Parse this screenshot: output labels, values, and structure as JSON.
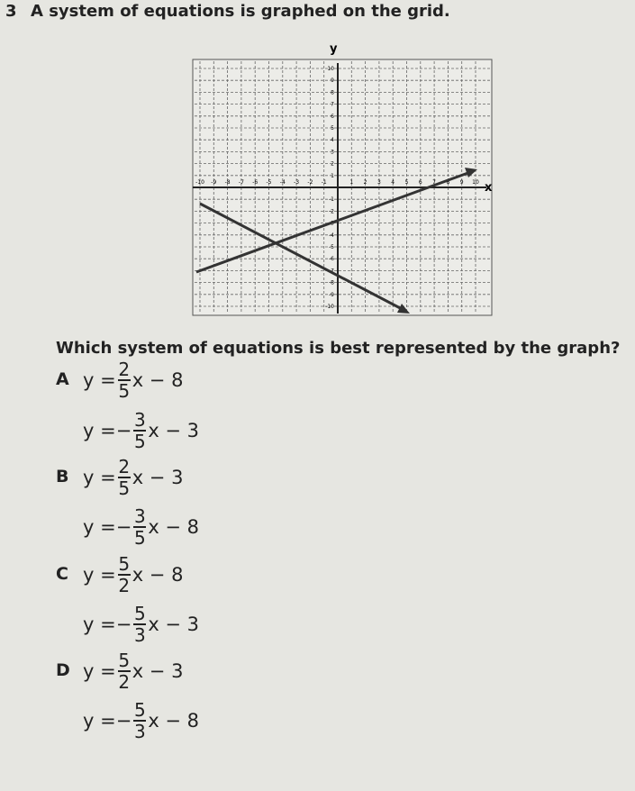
{
  "question": {
    "number": "3",
    "text": "A system of equations is graphed on the grid.",
    "prompt": "Which system of equations is best represented by the graph?"
  },
  "graph": {
    "x_label": "x",
    "y_label": "y",
    "xticks": [
      -10,
      -9,
      -8,
      -7,
      -6,
      -5,
      -4,
      -3,
      -2,
      -1,
      1,
      2,
      3,
      4,
      5,
      6,
      7,
      8,
      9,
      10
    ],
    "yticks": [
      10,
      9,
      8,
      7,
      6,
      5,
      4,
      3,
      2,
      1,
      -1,
      -2,
      -3,
      -4,
      -5,
      -6,
      -7,
      -8,
      -9,
      -10
    ]
  },
  "options": [
    {
      "letter": "A",
      "equations": [
        {
          "prefix": "y =",
          "num": "2",
          "den": "5",
          "suffix": "x − 8"
        },
        {
          "prefix": "y =",
          "sign": "−",
          "num": "3",
          "den": "5",
          "suffix": "x − 3"
        }
      ]
    },
    {
      "letter": "B",
      "equations": [
        {
          "prefix": "y =",
          "num": "2",
          "den": "5",
          "suffix": "x − 3"
        },
        {
          "prefix": "y =",
          "sign": "−",
          "num": "3",
          "den": "5",
          "suffix": "x − 8"
        }
      ]
    },
    {
      "letter": "C",
      "equations": [
        {
          "prefix": "y =",
          "num": "5",
          "den": "2",
          "suffix": "x − 8"
        },
        {
          "prefix": "y =",
          "sign": "−",
          "num": "5",
          "den": "3",
          "suffix": "x − 3"
        }
      ]
    },
    {
      "letter": "D",
      "equations": [
        {
          "prefix": "y =",
          "num": "5",
          "den": "2",
          "suffix": "x − 3"
        },
        {
          "prefix": "y =",
          "sign": "−",
          "num": "5",
          "den": "3",
          "suffix": "x − 8"
        }
      ]
    }
  ]
}
